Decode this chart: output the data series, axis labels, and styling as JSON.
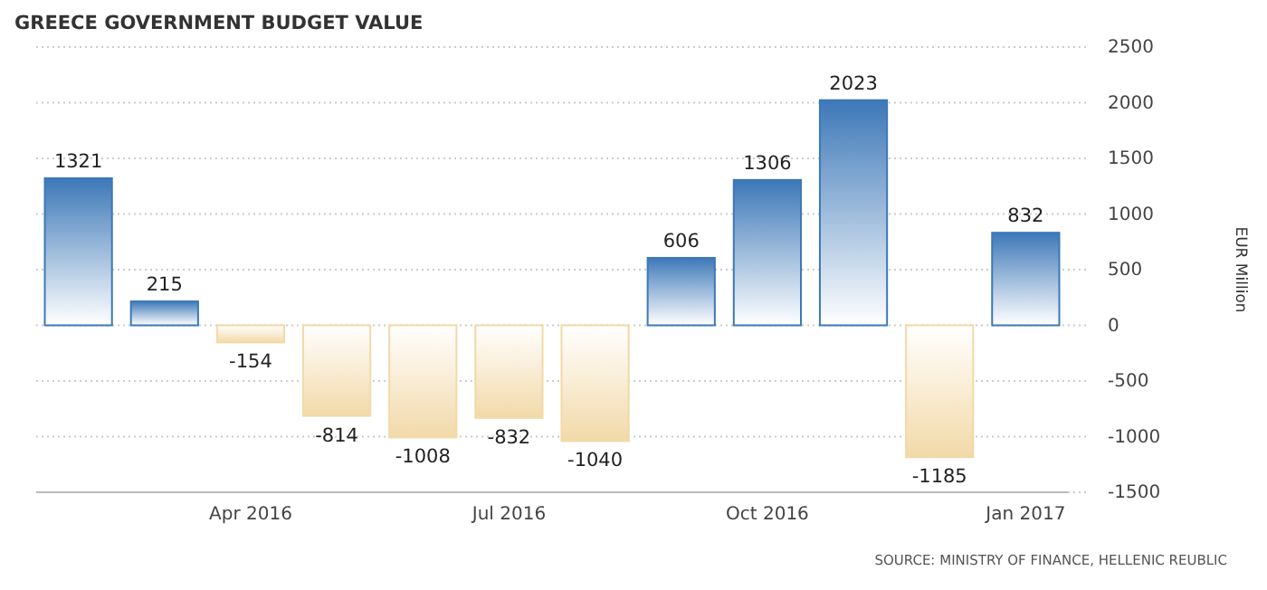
{
  "chart_data": {
    "type": "bar",
    "title": "GREECE GOVERNMENT BUDGET VALUE",
    "ylabel": "EUR Million",
    "categories": [
      null,
      null,
      "Apr 2016",
      null,
      null,
      "Jul 2016",
      null,
      null,
      "Oct 2016",
      null,
      null,
      "Jan 2017"
    ],
    "values": [
      1321,
      215,
      -154,
      -814,
      -1008,
      -832,
      -1040,
      606,
      1306,
      2023,
      -1185,
      832
    ],
    "colors": [
      "#3d78b8",
      "#3d78b8",
      "#f2d9a8",
      "#f2d9a8",
      "#f2d9a8",
      "#f2d9a8",
      "#f2d9a8",
      "#3d78b8",
      "#3d78b8",
      "#3d78b8",
      "#f2d9a8",
      "#3d78b8"
    ],
    "data_labels": true,
    "ylim": [
      -1500,
      2500
    ],
    "yticks": [
      -1500,
      -1000,
      -500,
      0,
      500,
      1000,
      1500,
      2000,
      2500
    ],
    "grid": "y",
    "annotations": [
      "SOURCE: MINISTRY OF FINANCE, HELLENIC REUBLIC"
    ]
  }
}
